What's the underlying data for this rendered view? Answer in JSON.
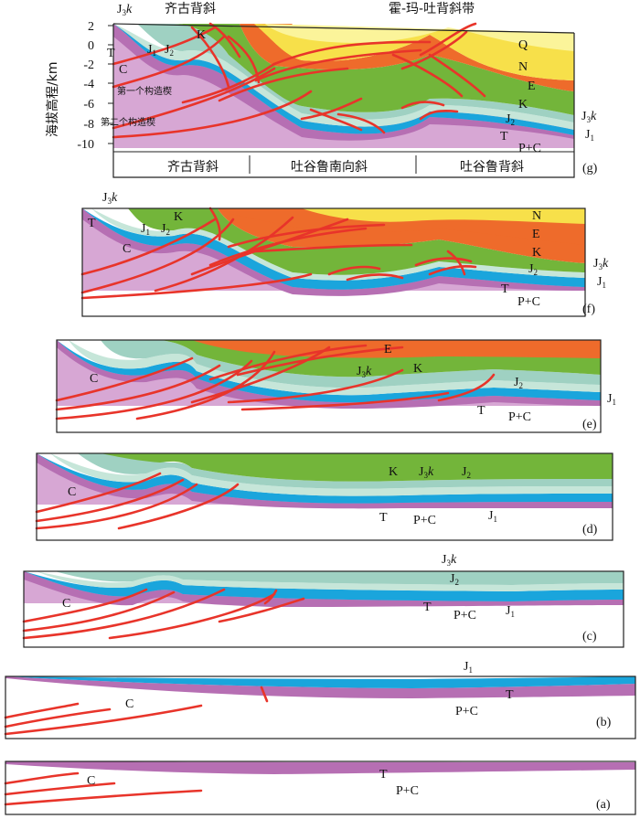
{
  "y_axis": {
    "title": "海拔高程/km",
    "ticks": [
      "2",
      "0",
      "-2",
      "-4",
      "-6",
      "-8",
      "-10"
    ]
  },
  "panel_g": {
    "id": "(g)",
    "title_left": "齐古背斜",
    "title_right": "霍-玛-吐背斜带",
    "top_left_label": "J",
    "top_left_sub": "3",
    "top_left_it": "k",
    "wedge_1": "第一个构造楔",
    "wedge_2": "第二个构造楔",
    "bottom_labels": [
      "齐古背斜",
      "吐谷鲁南向斜",
      "吐谷鲁背斜"
    ],
    "units": {
      "Q": "Q",
      "N": "N",
      "E": "E",
      "K": "K",
      "J2": "J",
      "J1": "J",
      "J3k": "J",
      "T": "T",
      "PC": "P+C",
      "C": "C"
    }
  },
  "panel_f": {
    "id": "(f)",
    "units": {
      "N": "N",
      "E": "E",
      "K": "K",
      "J2": "J",
      "J3k": "J",
      "J1": "J",
      "T": "T",
      "PC": "P+C",
      "C": "C"
    }
  },
  "panel_e": {
    "id": "(e)",
    "units": {
      "E": "E",
      "K": "K",
      "J3k": "J",
      "J2": "J",
      "J1": "J",
      "T": "T",
      "PC": "P+C",
      "C": "C"
    }
  },
  "panel_d": {
    "id": "(d)",
    "units": {
      "K": "K",
      "J3k": "J",
      "J2": "J",
      "J1": "J",
      "T": "T",
      "PC": "P+C",
      "C": "C"
    }
  },
  "panel_c": {
    "id": "(c)",
    "units": {
      "J3k": "J",
      "J2": "J",
      "J1": "J",
      "T": "T",
      "PC": "P+C",
      "C": "C"
    }
  },
  "panel_b": {
    "id": "(b)",
    "units": {
      "J1": "J",
      "T": "T",
      "PC": "P+C",
      "C": "C"
    }
  },
  "panel_a": {
    "id": "(a)",
    "units": {
      "T": "T",
      "PC": "P+C",
      "C": "C"
    }
  },
  "colors": {
    "Q": "#fbf49a",
    "N": "#f7e04a",
    "E": "#ee6b2b",
    "K": "#73b53a",
    "J3k": "#9fd1c2",
    "J2": "#c6e6d9",
    "J1": "#1aa5dc",
    "T": "#b66fb3",
    "PC": "#d7a7d4",
    "fault": "#e8342a"
  }
}
